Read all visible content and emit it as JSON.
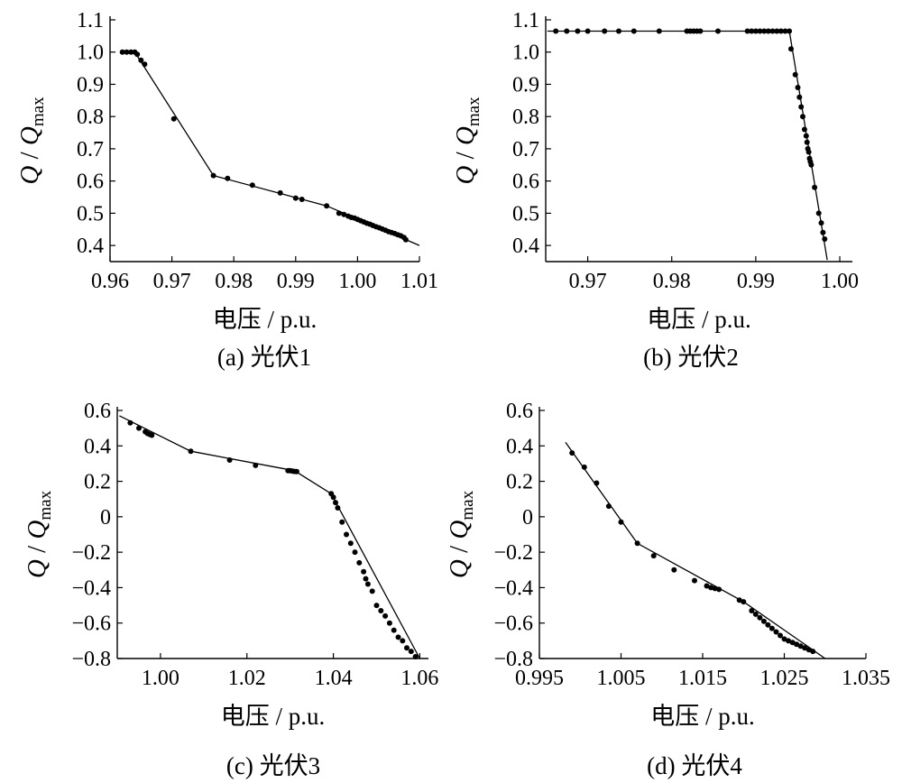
{
  "xaxis_label": "电压 / p.u.",
  "yaxis_label": {
    "q": "Q",
    "sep": " / ",
    "qmax": "Q",
    "sub": "max"
  },
  "chart_data": [
    {
      "id": "a",
      "type": "scatter",
      "caption": "(a)  光伏1",
      "xlabel": "电压 / p.u.",
      "ylabel": "Q / Qmax",
      "xlim": [
        0.96,
        1.01
      ],
      "ylim": [
        0.35,
        1.1
      ],
      "xticks": [
        0.96,
        0.97,
        0.98,
        0.99,
        1.0,
        1.01
      ],
      "xtick_labels": [
        "0.96",
        "0.97",
        "0.98",
        "0.99",
        "1.00",
        "1.01"
      ],
      "yticks": [
        0.4,
        0.5,
        0.6,
        0.7,
        0.8,
        0.9,
        1.0,
        1.1
      ],
      "ytick_labels": [
        "0.4",
        "0.5",
        "0.6",
        "0.7",
        "0.8",
        "0.9",
        "1.0",
        "1.1"
      ],
      "line": {
        "x": [
          0.962,
          0.964,
          0.9767,
          0.995,
          1.01
        ],
        "y": [
          1.0,
          1.0,
          0.617,
          0.523,
          0.4
        ]
      },
      "points": {
        "x": [
          0.962,
          0.9627,
          0.9634,
          0.964,
          0.9644,
          0.965,
          0.9656,
          0.9703,
          0.9767,
          0.979,
          0.983,
          0.9875,
          0.99,
          0.991,
          0.995,
          0.997,
          0.9978,
          0.9985,
          0.999,
          0.9995,
          1.0,
          1.0005,
          1.001,
          1.0015,
          1.002,
          1.0025,
          1.003,
          1.0035,
          1.004,
          1.0045,
          1.005,
          1.0055,
          1.006,
          1.0065,
          1.007,
          1.0075,
          1.0078
        ],
        "y": [
          1.0,
          1.0,
          1.0,
          1.0,
          0.993,
          0.975,
          0.962,
          0.793,
          0.617,
          0.608,
          0.587,
          0.563,
          0.547,
          0.543,
          0.523,
          0.5,
          0.496,
          0.491,
          0.487,
          0.485,
          0.481,
          0.477,
          0.473,
          0.469,
          0.466,
          0.462,
          0.458,
          0.455,
          0.451,
          0.447,
          0.443,
          0.44,
          0.437,
          0.433,
          0.43,
          0.425,
          0.418
        ]
      }
    },
    {
      "id": "b",
      "type": "scatter",
      "caption": "(b)  光伏2",
      "xlabel": "电压 / p.u.",
      "ylabel": "Q / Qmax",
      "xlim": [
        0.965,
        1.0015
      ],
      "ylim": [
        0.35,
        1.1
      ],
      "xticks": [
        0.97,
        0.98,
        0.99,
        1.0
      ],
      "xtick_labels": [
        "0.97",
        "0.98",
        "0.99",
        "1.00"
      ],
      "yticks": [
        0.4,
        0.5,
        0.6,
        0.7,
        0.8,
        0.9,
        1.0,
        1.1
      ],
      "ytick_labels": [
        "0.4",
        "0.5",
        "0.6",
        "0.7",
        "0.8",
        "0.9",
        "1.0",
        "1.1"
      ],
      "line": {
        "x": [
          0.9652,
          0.994,
          0.9985
        ],
        "y": [
          1.065,
          1.065,
          0.355
        ]
      },
      "points": {
        "x": [
          0.9662,
          0.9675,
          0.9688,
          0.97,
          0.972,
          0.9737,
          0.9755,
          0.9785,
          0.9818,
          0.9822,
          0.9826,
          0.983,
          0.9834,
          0.9855,
          0.989,
          0.9895,
          0.99,
          0.9905,
          0.991,
          0.9915,
          0.992,
          0.9925,
          0.993,
          0.9935,
          0.994,
          0.9942,
          0.9947,
          0.995,
          0.9952,
          0.9954,
          0.9956,
          0.9958,
          0.996,
          0.9961,
          0.9962,
          0.9963,
          0.9964,
          0.9965,
          0.9966,
          0.997,
          0.9975,
          0.9978,
          0.998,
          0.9982
        ],
        "y": [
          1.065,
          1.065,
          1.065,
          1.065,
          1.065,
          1.065,
          1.065,
          1.065,
          1.065,
          1.065,
          1.065,
          1.065,
          1.065,
          1.065,
          1.065,
          1.065,
          1.065,
          1.065,
          1.065,
          1.065,
          1.065,
          1.065,
          1.065,
          1.065,
          1.065,
          1.01,
          0.93,
          0.89,
          0.86,
          0.83,
          0.8,
          0.76,
          0.74,
          0.72,
          0.7,
          0.69,
          0.67,
          0.66,
          0.65,
          0.58,
          0.5,
          0.47,
          0.44,
          0.42
        ]
      }
    },
    {
      "id": "c",
      "type": "scatter",
      "caption": "(c)  光伏3",
      "xlabel": "电压 / p.u.",
      "ylabel": "Q / Qmax",
      "xlim": [
        0.99,
        1.062
      ],
      "ylim": [
        -0.8,
        0.6
      ],
      "xticks": [
        1.0,
        1.02,
        1.04,
        1.06
      ],
      "xtick_labels": [
        "1.00",
        "1.02",
        "1.04",
        "1.06"
      ],
      "yticks": [
        -0.8,
        -0.6,
        -0.4,
        -0.2,
        0,
        0.2,
        0.4,
        0.6
      ],
      "ytick_labels": [
        "−0.8",
        "−0.6",
        "−0.4",
        "−0.2",
        "0",
        "0.2",
        "0.4",
        "0.6"
      ],
      "line": {
        "x": [
          0.9905,
          1.007,
          1.031,
          1.0395,
          1.06
        ],
        "y": [
          0.57,
          0.37,
          0.26,
          0.13,
          -0.8
        ]
      },
      "points": {
        "x": [
          0.993,
          0.995,
          0.9965,
          0.997,
          0.9975,
          0.998,
          1.007,
          1.016,
          1.022,
          1.0295,
          1.03,
          1.0305,
          1.031,
          1.0315,
          1.0395,
          1.04,
          1.0405,
          1.041,
          1.042,
          1.043,
          1.044,
          1.045,
          1.046,
          1.047,
          1.0475,
          1.048,
          1.049,
          1.05,
          1.051,
          1.052,
          1.053,
          1.054,
          1.055,
          1.056,
          1.057,
          1.058,
          1.059
        ],
        "y": [
          0.53,
          0.5,
          0.48,
          0.47,
          0.465,
          0.46,
          0.37,
          0.32,
          0.29,
          0.26,
          0.26,
          0.258,
          0.256,
          0.255,
          0.13,
          0.11,
          0.08,
          0.05,
          -0.03,
          -0.1,
          -0.15,
          -0.2,
          -0.26,
          -0.31,
          -0.35,
          -0.38,
          -0.42,
          -0.5,
          -0.53,
          -0.56,
          -0.6,
          -0.64,
          -0.68,
          -0.7,
          -0.74,
          -0.76,
          -0.79
        ]
      }
    },
    {
      "id": "d",
      "type": "scatter",
      "caption": "(d)  光伏4",
      "xlabel": "电压 / p.u.",
      "ylabel": "Q / Qmax",
      "xlim": [
        0.995,
        1.035
      ],
      "ylim": [
        -0.8,
        0.6
      ],
      "xticks": [
        0.995,
        1.005,
        1.015,
        1.025,
        1.035
      ],
      "xtick_labels": [
        "0.995",
        "1.005",
        "1.015",
        "1.025",
        "1.035"
      ],
      "yticks": [
        -0.8,
        -0.6,
        -0.4,
        -0.2,
        0,
        0.2,
        0.4,
        0.6
      ],
      "ytick_labels": [
        "−0.8",
        "−0.6",
        "−0.4",
        "−0.2",
        "0",
        "0.2",
        "0.4",
        "0.6"
      ],
      "line": {
        "x": [
          0.9982,
          1.007,
          1.02,
          1.03
        ],
        "y": [
          0.42,
          -0.15,
          -0.48,
          -0.8
        ]
      },
      "points": {
        "x": [
          0.999,
          1.0005,
          1.002,
          1.0035,
          1.005,
          1.007,
          1.009,
          1.0115,
          1.014,
          1.0155,
          1.016,
          1.0165,
          1.017,
          1.0195,
          1.02,
          1.021,
          1.0215,
          1.022,
          1.0225,
          1.023,
          1.0235,
          1.024,
          1.0245,
          1.025,
          1.0255,
          1.026,
          1.0265,
          1.027,
          1.0275,
          1.028,
          1.0285
        ],
        "y": [
          0.36,
          0.28,
          0.19,
          0.06,
          -0.03,
          -0.15,
          -0.22,
          -0.3,
          -0.36,
          -0.39,
          -0.4,
          -0.405,
          -0.41,
          -0.47,
          -0.48,
          -0.53,
          -0.55,
          -0.57,
          -0.59,
          -0.61,
          -0.63,
          -0.65,
          -0.67,
          -0.69,
          -0.7,
          -0.71,
          -0.72,
          -0.73,
          -0.74,
          -0.75,
          -0.76
        ]
      }
    }
  ]
}
